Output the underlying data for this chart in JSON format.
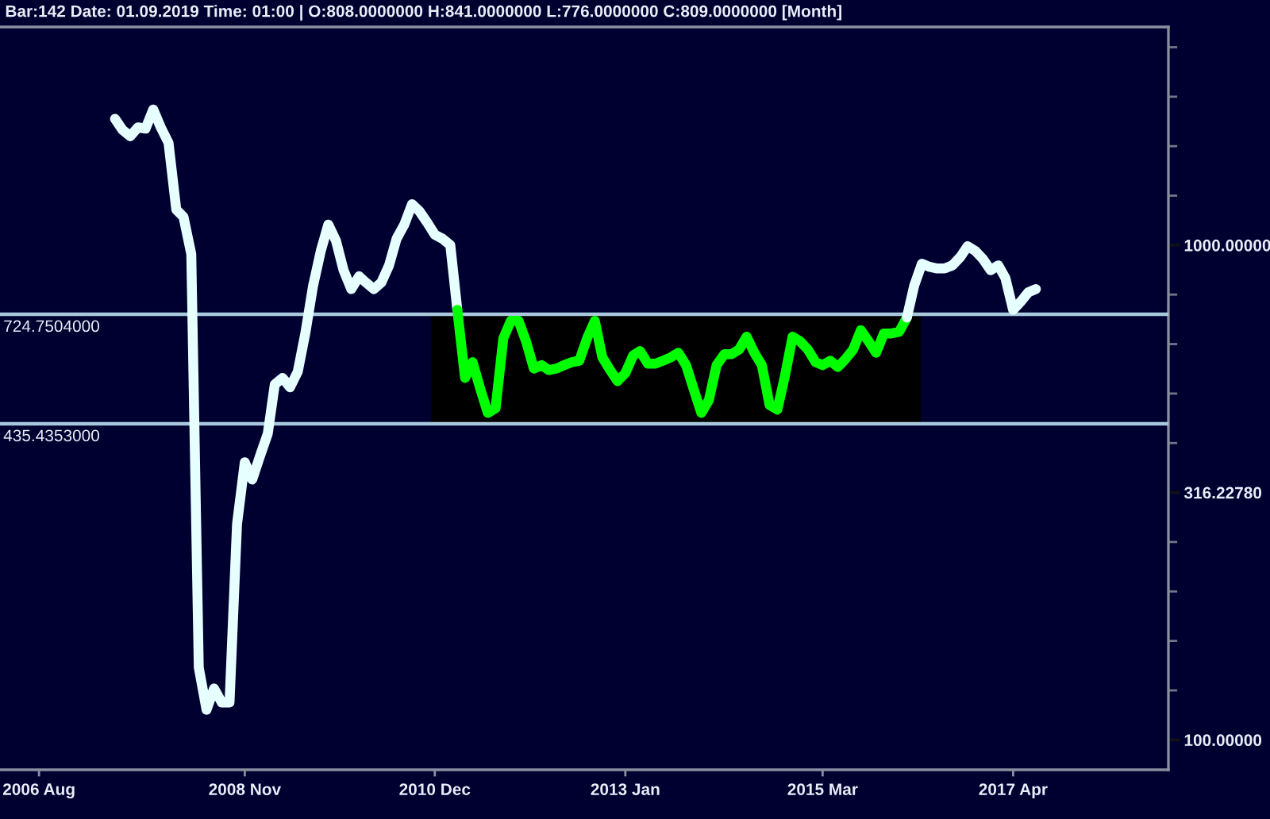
{
  "chart_data": {
    "type": "line",
    "title": "Bar:142 Date: 01.09.2019 Time: 01:00 | O:808.0000000 H:841.0000000 L:776.0000000 C:809.0000000 [Month]",
    "log": "y",
    "xlim": [
      "2006-02-26",
      "2018-12-13"
    ],
    "xticks": [
      {
        "value": "2006-08",
        "label": "2006 Aug"
      },
      {
        "value": "2008-11",
        "label": "2008 Nov"
      },
      {
        "value": "2010-12",
        "label": "2010 Dec"
      },
      {
        "value": "2013-01",
        "label": "2013 Jan"
      },
      {
        "value": "2015-03",
        "label": "2015 Mar"
      },
      {
        "value": "2017-04",
        "label": "2017 Apr"
      }
    ],
    "ylim": [
      87,
      2760
    ],
    "yticks": [
      {
        "value": 2511.9,
        "label": null
      },
      {
        "value": 1995.3,
        "label": null
      },
      {
        "value": 1584.9,
        "label": null
      },
      {
        "value": 1258.9,
        "label": null
      },
      {
        "value": 1000,
        "label": "1000.00000"
      },
      {
        "value": 794.33,
        "label": null
      },
      {
        "value": 630.96,
        "label": null
      },
      {
        "value": 501.19,
        "label": null
      },
      {
        "value": 398.11,
        "label": null
      },
      {
        "value": 316.2278,
        "label": "316.22780"
      },
      {
        "value": 251.19,
        "label": null
      },
      {
        "value": 199.53,
        "label": null
      },
      {
        "value": 158.49,
        "label": null
      },
      {
        "value": 125.89,
        "label": null
      },
      {
        "value": 100,
        "label": "100.00000"
      }
    ],
    "ref_lines": [
      {
        "axis": "y",
        "value": 724.7504,
        "label": "724.7504000",
        "color": "#a8c8dc"
      },
      {
        "axis": "y",
        "value": 435.4353,
        "label": "435.4353000",
        "color": "#a8c8dc"
      }
    ],
    "bands": [
      {
        "axis": "x",
        "from": "2010-11-16",
        "to": "2016-03-28",
        "color": "#000000"
      }
    ],
    "series": [
      {
        "color": "#e6ffff",
        "x": [
          "2007-06",
          "2007-07",
          "2007-08",
          "2007-09",
          "2007-10",
          "2007-11",
          "2007-12",
          "2008-01",
          "2008-02",
          "2008-03",
          "2008-04",
          "2008-05",
          "2008-06",
          "2008-07",
          "2008-08",
          "2008-09",
          "2008-10",
          "2008-11",
          "2008-12",
          "2009-01",
          "2009-02",
          "2009-03",
          "2009-04",
          "2009-05",
          "2009-06",
          "2009-07",
          "2009-08",
          "2009-09",
          "2009-10",
          "2009-11",
          "2009-12",
          "2010-01",
          "2010-02",
          "2010-03",
          "2010-04",
          "2010-05",
          "2010-06",
          "2010-07",
          "2010-08",
          "2010-09",
          "2010-10",
          "2010-11",
          "2010-12",
          "2011-01",
          "2011-02",
          "2011-03"
        ],
        "values": [
          1800,
          1710,
          1660,
          1730,
          1720,
          1880,
          1730,
          1610,
          1180,
          1140,
          959,
          140,
          115,
          127,
          119,
          119,
          273,
          364,
          336,
          375,
          416,
          523,
          539,
          516,
          555,
          663,
          827,
          973,
          1100,
          1020,
          890,
          815,
          865,
          840,
          815,
          840,
          910,
          1030,
          1100,
          1210,
          1170,
          1110,
          1050,
          1030,
          1000,
          740
        ]
      },
      {
        "color": "#00ff00",
        "x": [
          "2011-03",
          "2011-04",
          "2011-05",
          "2011-06",
          "2011-07",
          "2011-08",
          "2011-09",
          "2011-10",
          "2011-11",
          "2011-12",
          "2012-01",
          "2012-02",
          "2012-03",
          "2012-04",
          "2012-05",
          "2012-06",
          "2012-07",
          "2012-08",
          "2012-09",
          "2012-10",
          "2012-11",
          "2012-12",
          "2013-01",
          "2013-02",
          "2013-03",
          "2013-04",
          "2013-05",
          "2013-06",
          "2013-07",
          "2013-08",
          "2013-09",
          "2013-10",
          "2013-11",
          "2013-12",
          "2014-01",
          "2014-02",
          "2014-03",
          "2014-04",
          "2014-05",
          "2014-06",
          "2014-07",
          "2014-08",
          "2014-09",
          "2014-10",
          "2014-11",
          "2014-12",
          "2015-01",
          "2015-02",
          "2015-03",
          "2015-04",
          "2015-05",
          "2015-06",
          "2015-07",
          "2015-08",
          "2015-09",
          "2015-10",
          "2015-11",
          "2015-12",
          "2016-01",
          "2016-02"
        ],
        "values": [
          740,
          539,
          580,
          512,
          458,
          468,
          648,
          703,
          703,
          639,
          563,
          572,
          559,
          563,
          572,
          580,
          584,
          648,
          703,
          593,
          559,
          531,
          551,
          598,
          611,
          576,
          576,
          584,
          593,
          606,
          572,
          512,
          458,
          486,
          572,
          602,
          602,
          615,
          653,
          606,
          572,
          475,
          465,
          543,
          653,
          639,
          615,
          580,
          572,
          584,
          567,
          589,
          615,
          673,
          639,
          606,
          663,
          663,
          668,
          714
        ]
      },
      {
        "color": "#e6ffff",
        "x": [
          "2016-02",
          "2016-03",
          "2016-04",
          "2016-05",
          "2016-06",
          "2016-07",
          "2016-08",
          "2016-09",
          "2016-10",
          "2016-11",
          "2016-12",
          "2017-01",
          "2017-02",
          "2017-03",
          "2017-04",
          "2017-05",
          "2017-06",
          "2017-07"
        ],
        "values": [
          714,
          827,
          917,
          904,
          897,
          897,
          910,
          945,
          995,
          973,
          938,
          890,
          910,
          858,
          740,
          768,
          803,
          815
        ]
      }
    ]
  }
}
